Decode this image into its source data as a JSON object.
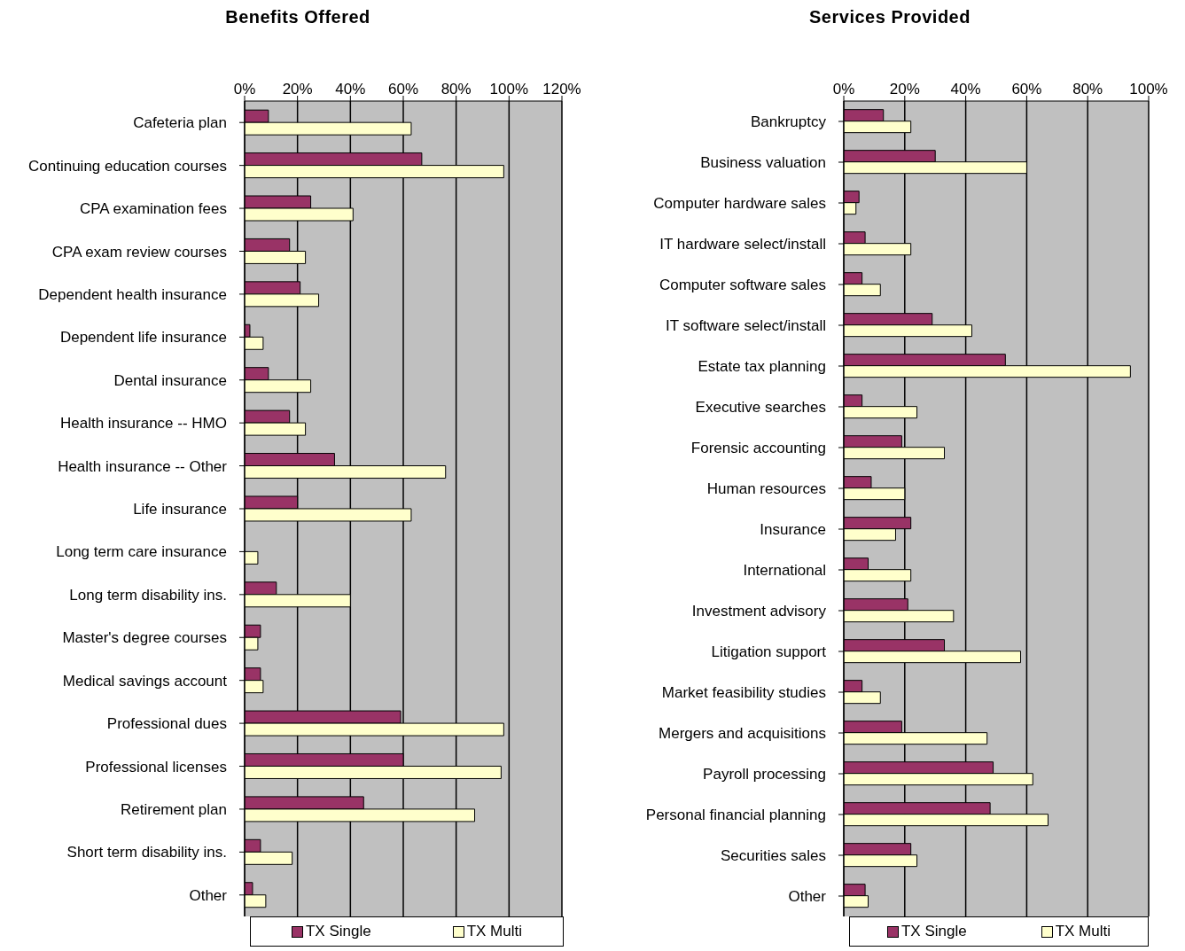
{
  "chart_data": [
    {
      "type": "bar",
      "orientation": "horizontal",
      "title": "Benefits Offered",
      "categories": [
        "Cafeteria plan",
        "Continuing education courses",
        "CPA examination fees",
        "CPA exam review courses",
        "Dependent health insurance",
        "Dependent life insurance",
        "Dental insurance",
        "Health insurance -- HMO",
        "Health insurance -- Other",
        "Life insurance",
        "Long term care insurance",
        "Long term disability ins.",
        "Master's degree courses",
        "Medical savings account",
        "Professional dues",
        "Professional licenses",
        "Retirement plan",
        "Short term disability ins.",
        "Other"
      ],
      "series": [
        {
          "name": "TX Single",
          "color": "#993366",
          "values": [
            9,
            67,
            25,
            17,
            21,
            2,
            9,
            17,
            34,
            20,
            0,
            12,
            6,
            6,
            59,
            60,
            45,
            6,
            3
          ]
        },
        {
          "name": "TX Multi",
          "color": "#ffffcc",
          "values": [
            63,
            98,
            41,
            23,
            28,
            7,
            25,
            23,
            76,
            63,
            5,
            40,
            5,
            7,
            98,
            97,
            87,
            18,
            8
          ]
        }
      ],
      "xlim": [
        0,
        120
      ],
      "xticks": [
        {
          "value": 0,
          "label": "0%"
        },
        {
          "value": 20,
          "label": "20%"
        },
        {
          "value": 40,
          "label": "40%"
        },
        {
          "value": 60,
          "label": "60%"
        },
        {
          "value": 80,
          "label": "80%"
        },
        {
          "value": 100,
          "label": "100%"
        },
        {
          "value": 120,
          "label": "120%"
        }
      ],
      "grid": "x",
      "legend": "bottom"
    },
    {
      "type": "bar",
      "orientation": "horizontal",
      "title": "Services Provided",
      "categories": [
        "Bankruptcy",
        "Business valuation",
        "Computer hardware sales",
        "IT hardware select/install",
        "Computer software sales",
        "IT software select/install",
        "Estate tax planning",
        "Executive searches",
        "Forensic accounting",
        "Human resources",
        "Insurance",
        "International",
        "Investment advisory",
        "Litigation support",
        "Market feasibility studies",
        "Mergers and acquisitions",
        "Payroll processing",
        "Personal financial planning",
        "Securities sales",
        "Other"
      ],
      "series": [
        {
          "name": "TX Single",
          "color": "#993366",
          "values": [
            13,
            30,
            5,
            7,
            6,
            29,
            53,
            6,
            19,
            9,
            22,
            8,
            21,
            33,
            6,
            19,
            49,
            48,
            22,
            7
          ]
        },
        {
          "name": "TX Multi",
          "color": "#ffffcc",
          "values": [
            22,
            60,
            4,
            22,
            12,
            42,
            94,
            24,
            33,
            20,
            17,
            22,
            36,
            58,
            12,
            47,
            62,
            67,
            24,
            8
          ]
        }
      ],
      "xlim": [
        0,
        100
      ],
      "xticks": [
        {
          "value": 0,
          "label": "0%"
        },
        {
          "value": 20,
          "label": "20%"
        },
        {
          "value": 40,
          "label": "40%"
        },
        {
          "value": 60,
          "label": "60%"
        },
        {
          "value": 80,
          "label": "80%"
        },
        {
          "value": 100,
          "label": "100%"
        }
      ],
      "grid": "x",
      "legend": "bottom"
    }
  ]
}
